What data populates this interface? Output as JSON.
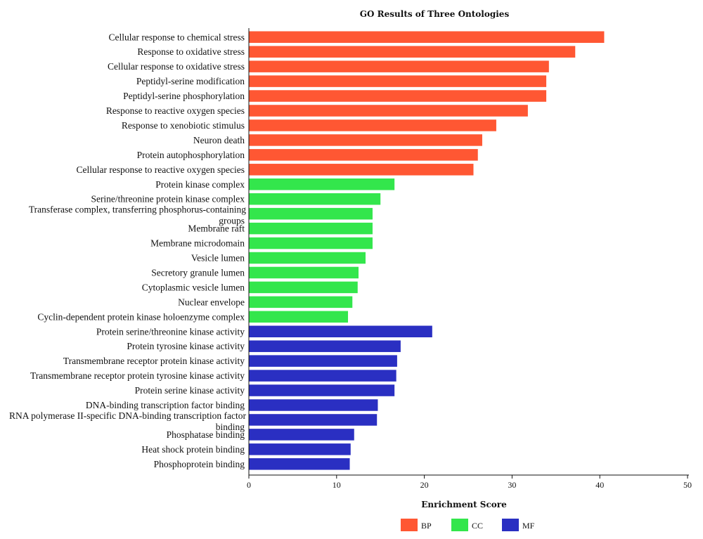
{
  "chart_data": {
    "type": "bar",
    "orientation": "horizontal",
    "title": "GO Results of Three Ontologies",
    "xlabel": "Enrichment Score",
    "ylabel": "",
    "xlim": [
      0,
      50
    ],
    "xticks": [
      0,
      10,
      20,
      30,
      40,
      50
    ],
    "grid": false,
    "legend_position": "bottom",
    "colors": {
      "BP": "#FF5733",
      "CC": "#33E64C",
      "MF": "#2A2FC2"
    },
    "legend": [
      {
        "name": "BP",
        "color": "#FF5733"
      },
      {
        "name": "CC",
        "color": "#33E64C"
      },
      {
        "name": "MF",
        "color": "#2A2FC2"
      }
    ],
    "bars": [
      {
        "label": [
          "Cellular response to chemical stress"
        ],
        "value": 40.5,
        "group": "BP"
      },
      {
        "label": [
          "Response to oxidative stress"
        ],
        "value": 37.2,
        "group": "BP"
      },
      {
        "label": [
          "Cellular response to oxidative stress"
        ],
        "value": 34.2,
        "group": "BP"
      },
      {
        "label": [
          "Peptidyl-serine modification"
        ],
        "value": 33.9,
        "group": "BP"
      },
      {
        "label": [
          "Peptidyl-serine phosphorylation"
        ],
        "value": 33.9,
        "group": "BP"
      },
      {
        "label": [
          "Response to reactive oxygen species"
        ],
        "value": 31.8,
        "group": "BP"
      },
      {
        "label": [
          "Response to xenobiotic stimulus"
        ],
        "value": 28.2,
        "group": "BP"
      },
      {
        "label": [
          "Neuron death"
        ],
        "value": 26.6,
        "group": "BP"
      },
      {
        "label": [
          "Protein autophosphorylation"
        ],
        "value": 26.1,
        "group": "BP"
      },
      {
        "label": [
          "Cellular response to reactive oxygen species"
        ],
        "value": 25.6,
        "group": "BP"
      },
      {
        "label": [
          "Protein kinase complex"
        ],
        "value": 16.6,
        "group": "CC"
      },
      {
        "label": [
          "Serine/threonine protein kinase complex"
        ],
        "value": 15.0,
        "group": "CC"
      },
      {
        "label": [
          "Transferase complex, transferring phosphorus-containing",
          "groups"
        ],
        "value": 14.1,
        "group": "CC"
      },
      {
        "label": [
          "Membrane raft"
        ],
        "value": 14.1,
        "group": "CC"
      },
      {
        "label": [
          "Membrane microdomain"
        ],
        "value": 14.1,
        "group": "CC"
      },
      {
        "label": [
          "Vesicle lumen"
        ],
        "value": 13.3,
        "group": "CC"
      },
      {
        "label": [
          "Secretory granule lumen"
        ],
        "value": 12.5,
        "group": "CC"
      },
      {
        "label": [
          "Cytoplasmic vesicle lumen"
        ],
        "value": 12.4,
        "group": "CC"
      },
      {
        "label": [
          "Nuclear envelope"
        ],
        "value": 11.8,
        "group": "CC"
      },
      {
        "label": [
          "Cyclin-dependent protein kinase holoenzyme complex"
        ],
        "value": 11.3,
        "group": "CC"
      },
      {
        "label": [
          "Protein serine/threonine kinase activity"
        ],
        "value": 20.9,
        "group": "MF"
      },
      {
        "label": [
          "Protein tyrosine kinase activity"
        ],
        "value": 17.3,
        "group": "MF"
      },
      {
        "label": [
          "Transmembrane receptor protein kinase activity"
        ],
        "value": 16.9,
        "group": "MF"
      },
      {
        "label": [
          "Transmembrane receptor protein tyrosine kinase activity"
        ],
        "value": 16.8,
        "group": "MF"
      },
      {
        "label": [
          "Protein serine kinase activity"
        ],
        "value": 16.6,
        "group": "MF"
      },
      {
        "label": [
          "DNA-binding transcription factor binding"
        ],
        "value": 14.7,
        "group": "MF"
      },
      {
        "label": [
          "RNA polymerase II-specific DNA-binding transcription factor",
          "binding"
        ],
        "value": 14.6,
        "group": "MF"
      },
      {
        "label": [
          "Phosphatase binding"
        ],
        "value": 12.0,
        "group": "MF"
      },
      {
        "label": [
          "Heat shock protein binding"
        ],
        "value": 11.6,
        "group": "MF"
      },
      {
        "label": [
          "Phosphoprotein binding"
        ],
        "value": 11.5,
        "group": "MF"
      }
    ]
  }
}
